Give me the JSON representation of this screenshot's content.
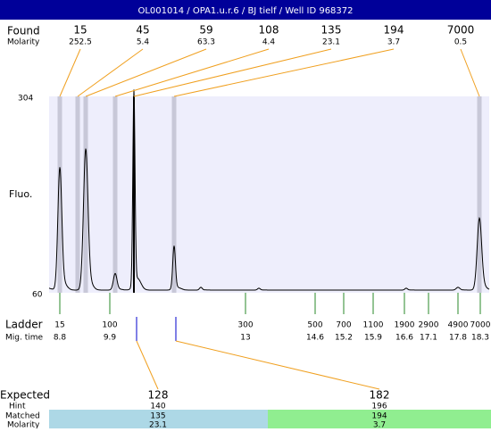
{
  "header": {
    "title": "OL001014 / OPA1.u.r.6 / BJ tielf / Well ID 968372"
  },
  "found": {
    "label": "Found",
    "molarity_label": "Molarity",
    "peaks": [
      {
        "size": 15,
        "molarity": 252.5
      },
      {
        "size": 45,
        "molarity": 5.4
      },
      {
        "size": 59,
        "molarity": 63.3
      },
      {
        "size": 108,
        "molarity": 4.4
      },
      {
        "size": 135,
        "molarity": 23.1
      },
      {
        "size": 194,
        "molarity": 3.7
      },
      {
        "size": 7000,
        "molarity": 0.5
      }
    ]
  },
  "axis": {
    "top": 304,
    "bottom": 60,
    "label": "Fluo."
  },
  "ladder": {
    "label": "Ladder",
    "time_label": "Mig. time",
    "steps": [
      {
        "size": 15,
        "time": 8.8
      },
      {
        "size": 100,
        "time": 9.9
      },
      {
        "size": 300,
        "time": 13
      },
      {
        "size": 500,
        "time": 14.6
      },
      {
        "size": 700,
        "time": 15.2
      },
      {
        "size": 1100,
        "time": 15.9
      },
      {
        "size": 1900,
        "time": 16.6
      },
      {
        "size": 2900,
        "time": 17.1
      },
      {
        "size": 4900,
        "time": 17.8
      },
      {
        "size": 7000,
        "time": 18.3
      }
    ]
  },
  "expected": {
    "label": "Expected",
    "hint_label": "Hint",
    "matched_label": "Matched",
    "molarity_label": "Molarity",
    "columns": [
      {
        "expected": 128,
        "hint": 140,
        "matched": 135,
        "molarity": 23.1
      },
      {
        "expected": 182,
        "hint": 196,
        "matched": 194,
        "molarity": 3.7
      }
    ]
  }
}
